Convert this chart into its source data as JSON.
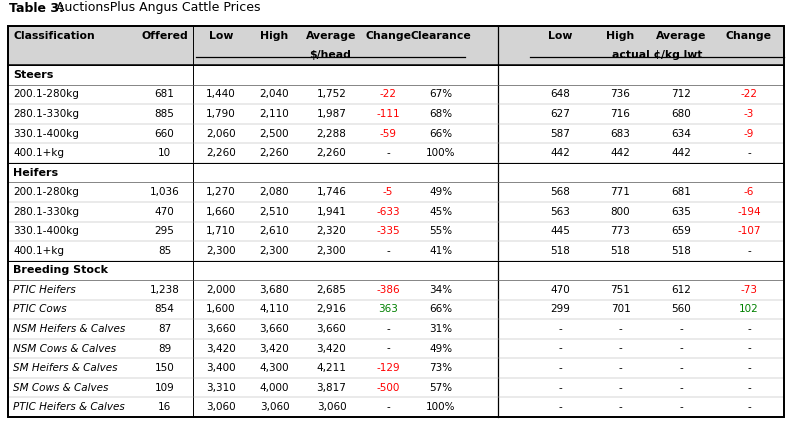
{
  "title_bold": "Table 3:",
  "title_normal": " AuctionsPlus Angus Cattle Prices",
  "header_bg": "#d4d4d4",
  "body_font_size": 7.5,
  "header_font_size": 7.8,
  "title_font_size": 9.0,
  "section_font_size": 8.0,
  "rows": [
    {
      "section": "Steers",
      "label": "200.1-280kg",
      "offered": "681",
      "low": "1,440",
      "high": "2,040",
      "avg": "1,752",
      "change": "-22",
      "clearance": "67%",
      "low2": "648",
      "high2": "736",
      "avg2": "712",
      "change2": "-22",
      "change_color": "red",
      "change2_color": "red",
      "italic": false
    },
    {
      "section": "Steers",
      "label": "280.1-330kg",
      "offered": "885",
      "low": "1,790",
      "high": "2,110",
      "avg": "1,987",
      "change": "-111",
      "clearance": "68%",
      "low2": "627",
      "high2": "716",
      "avg2": "680",
      "change2": "-3",
      "change_color": "red",
      "change2_color": "red",
      "italic": false
    },
    {
      "section": "Steers",
      "label": "330.1-400kg",
      "offered": "660",
      "low": "2,060",
      "high": "2,500",
      "avg": "2,288",
      "change": "-59",
      "clearance": "66%",
      "low2": "587",
      "high2": "683",
      "avg2": "634",
      "change2": "-9",
      "change_color": "red",
      "change2_color": "red",
      "italic": false
    },
    {
      "section": "Steers",
      "label": "400.1+kg",
      "offered": "10",
      "low": "2,260",
      "high": "2,260",
      "avg": "2,260",
      "change": "-",
      "clearance": "100%",
      "low2": "442",
      "high2": "442",
      "avg2": "442",
      "change2": "-",
      "change_color": "black",
      "change2_color": "black",
      "italic": false
    },
    {
      "section": "Heifers",
      "label": "200.1-280kg",
      "offered": "1,036",
      "low": "1,270",
      "high": "2,080",
      "avg": "1,746",
      "change": "-5",
      "clearance": "49%",
      "low2": "568",
      "high2": "771",
      "avg2": "681",
      "change2": "-6",
      "change_color": "red",
      "change2_color": "red",
      "italic": false
    },
    {
      "section": "Heifers",
      "label": "280.1-330kg",
      "offered": "470",
      "low": "1,660",
      "high": "2,510",
      "avg": "1,941",
      "change": "-633",
      "clearance": "45%",
      "low2": "563",
      "high2": "800",
      "avg2": "635",
      "change2": "-194",
      "change_color": "red",
      "change2_color": "red",
      "italic": false
    },
    {
      "section": "Heifers",
      "label": "330.1-400kg",
      "offered": "295",
      "low": "1,710",
      "high": "2,610",
      "avg": "2,320",
      "change": "-335",
      "clearance": "55%",
      "low2": "445",
      "high2": "773",
      "avg2": "659",
      "change2": "-107",
      "change_color": "red",
      "change2_color": "red",
      "italic": false
    },
    {
      "section": "Heifers",
      "label": "400.1+kg",
      "offered": "85",
      "low": "2,300",
      "high": "2,300",
      "avg": "2,300",
      "change": "-",
      "clearance": "41%",
      "low2": "518",
      "high2": "518",
      "avg2": "518",
      "change2": "-",
      "change_color": "black",
      "change2_color": "black",
      "italic": false
    },
    {
      "section": "Breeding Stock",
      "label": "PTIC Heifers",
      "offered": "1,238",
      "low": "2,000",
      "high": "3,680",
      "avg": "2,685",
      "change": "-386",
      "clearance": "34%",
      "low2": "470",
      "high2": "751",
      "avg2": "612",
      "change2": "-73",
      "change_color": "red",
      "change2_color": "red",
      "italic": true
    },
    {
      "section": "Breeding Stock",
      "label": "PTIC Cows",
      "offered": "854",
      "low": "1,600",
      "high": "4,110",
      "avg": "2,916",
      "change": "363",
      "clearance": "66%",
      "low2": "299",
      "high2": "701",
      "avg2": "560",
      "change2": "102",
      "change_color": "green",
      "change2_color": "green",
      "italic": true
    },
    {
      "section": "Breeding Stock",
      "label": "NSM Heifers & Calves",
      "offered": "87",
      "low": "3,660",
      "high": "3,660",
      "avg": "3,660",
      "change": "-",
      "clearance": "31%",
      "low2": "-",
      "high2": "-",
      "avg2": "-",
      "change2": "-",
      "change_color": "black",
      "change2_color": "black",
      "italic": true
    },
    {
      "section": "Breeding Stock",
      "label": "NSM Cows & Calves",
      "offered": "89",
      "low": "3,420",
      "high": "3,420",
      "avg": "3,420",
      "change": "-",
      "clearance": "49%",
      "low2": "-",
      "high2": "-",
      "avg2": "-",
      "change2": "-",
      "change_color": "black",
      "change2_color": "black",
      "italic": true
    },
    {
      "section": "Breeding Stock",
      "label": "SM Heifers & Calves",
      "offered": "150",
      "low": "3,400",
      "high": "4,300",
      "avg": "4,211",
      "change": "-129",
      "clearance": "73%",
      "low2": "-",
      "high2": "-",
      "avg2": "-",
      "change2": "-",
      "change_color": "red",
      "change2_color": "black",
      "italic": true
    },
    {
      "section": "Breeding Stock",
      "label": "SM Cows & Calves",
      "offered": "109",
      "low": "3,310",
      "high": "4,000",
      "avg": "3,817",
      "change": "-500",
      "clearance": "57%",
      "low2": "-",
      "high2": "-",
      "avg2": "-",
      "change2": "-",
      "change_color": "red",
      "change2_color": "black",
      "italic": true
    },
    {
      "section": "Breeding Stock",
      "label": "PTIC Heifers & Calves",
      "offered": "16",
      "low": "3,060",
      "high": "3,060",
      "avg": "3,060",
      "change": "-",
      "clearance": "100%",
      "low2": "-",
      "high2": "-",
      "avg2": "-",
      "change2": "-",
      "change_color": "black",
      "change2_color": "black",
      "italic": true
    }
  ]
}
